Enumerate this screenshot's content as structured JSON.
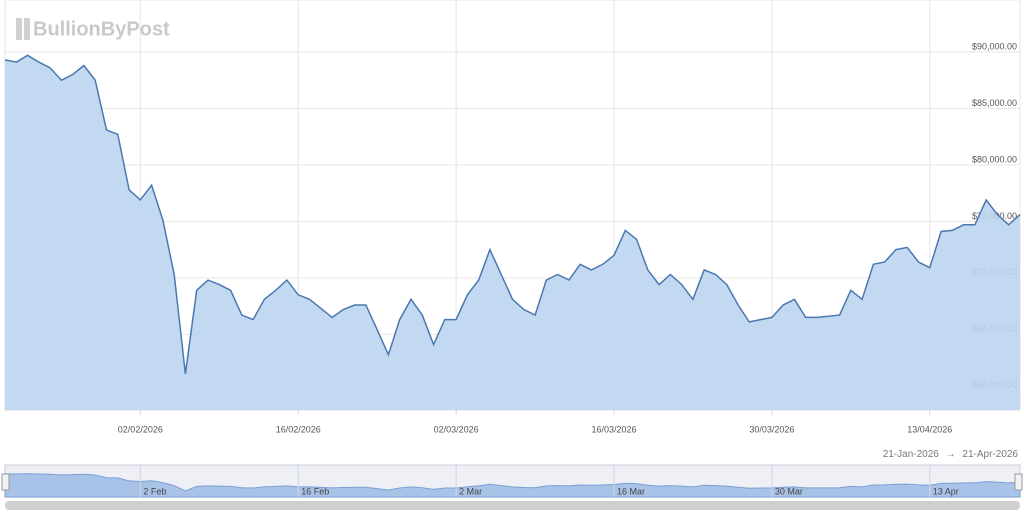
{
  "chart_data": {
    "type": "area",
    "watermark": "BullionByPost",
    "x": [
      "2026-01-21",
      "2026-01-22",
      "2026-01-23",
      "2026-01-24",
      "2026-01-25",
      "2026-01-26",
      "2026-01-27",
      "2026-01-28",
      "2026-01-29",
      "2026-01-30",
      "2026-01-31",
      "2026-02-01",
      "2026-02-02",
      "2026-02-03",
      "2026-02-04",
      "2026-02-05",
      "2026-02-06",
      "2026-02-07",
      "2026-02-08",
      "2026-02-09",
      "2026-02-10",
      "2026-02-11",
      "2026-02-12",
      "2026-02-13",
      "2026-02-14",
      "2026-02-15",
      "2026-02-16",
      "2026-02-17",
      "2026-02-18",
      "2026-02-19",
      "2026-02-20",
      "2026-02-21",
      "2026-02-22",
      "2026-02-23",
      "2026-02-24",
      "2026-02-25",
      "2026-02-26",
      "2026-02-27",
      "2026-02-28",
      "2026-03-01",
      "2026-03-02",
      "2026-03-03",
      "2026-03-04",
      "2026-03-05",
      "2026-03-06",
      "2026-03-07",
      "2026-03-08",
      "2026-03-09",
      "2026-03-10",
      "2026-03-11",
      "2026-03-12",
      "2026-03-13",
      "2026-03-14",
      "2026-03-15",
      "2026-03-16",
      "2026-03-17",
      "2026-03-18",
      "2026-03-19",
      "2026-03-20",
      "2026-03-21",
      "2026-03-22",
      "2026-03-23",
      "2026-03-24",
      "2026-03-25",
      "2026-03-26",
      "2026-03-27",
      "2026-03-28",
      "2026-03-29",
      "2026-03-30",
      "2026-03-31",
      "2026-04-01",
      "2026-04-02",
      "2026-04-03",
      "2026-04-04",
      "2026-04-05",
      "2026-04-06",
      "2026-04-07",
      "2026-04-08",
      "2026-04-09",
      "2026-04-10",
      "2026-04-11",
      "2026-04-12",
      "2026-04-13",
      "2026-04-14",
      "2026-04-15",
      "2026-04-16",
      "2026-04-17",
      "2026-04-18",
      "2026-04-19",
      "2026-04-20",
      "2026-04-21"
    ],
    "series": [
      {
        "color": "#4a78b0",
        "fill": "#bcd4ef",
        "values": [
          89300,
          89100,
          89700,
          89100,
          88600,
          87500,
          88000,
          88800,
          87500,
          83100,
          82700,
          77800,
          76900,
          78200,
          75100,
          70300,
          61500,
          68900,
          69800,
          69400,
          68900,
          66700,
          66300,
          68100,
          68900,
          69800,
          68500,
          68100,
          67300,
          66500,
          67200,
          67600,
          67600,
          65400,
          63200,
          66300,
          68100,
          66700,
          64100,
          66300,
          66300,
          68500,
          69800,
          72500,
          70300,
          68100,
          67200,
          66700,
          69800,
          70300,
          69800,
          71200,
          70700,
          71200,
          72000,
          74200,
          73400,
          70700,
          69400,
          70300,
          69400,
          68100,
          70700,
          70300,
          69400,
          67600,
          66100,
          66300,
          66500,
          67600,
          68100,
          66500,
          66500,
          66600,
          66700,
          68900,
          68100,
          71200,
          71400,
          72500,
          72700,
          71400,
          70900,
          74100,
          74200,
          74700,
          74700,
          76900,
          75600,
          74700,
          75600
        ]
      }
    ],
    "xlim": [
      "2026-01-21",
      "2026-04-21"
    ],
    "xticks": [
      {
        "value": "2026-02-02",
        "label": "02/02/2026"
      },
      {
        "value": "2026-02-16",
        "label": "16/02/2026"
      },
      {
        "value": "2026-03-02",
        "label": "02/03/2026"
      },
      {
        "value": "2026-03-16",
        "label": "16/03/2026"
      },
      {
        "value": "2026-03-30",
        "label": "30/03/2026"
      },
      {
        "value": "2026-04-13",
        "label": "13/04/2026"
      }
    ],
    "ylim": [
      58300,
      94600
    ],
    "yticks": [
      {
        "value": 60000,
        "label": "$60,000.00"
      },
      {
        "value": 65000,
        "label": "$65,000.00"
      },
      {
        "value": 70000,
        "label": "$70,000.00"
      },
      {
        "value": 75000,
        "label": "$75,000.00"
      },
      {
        "value": 80000,
        "label": "$80,000.00"
      },
      {
        "value": 85000,
        "label": "$85,000.00"
      },
      {
        "value": 90000,
        "label": "$90,000.00"
      }
    ],
    "grid": true,
    "navigator": {
      "xticks": [
        {
          "value": "2026-02-02",
          "label": "2 Feb"
        },
        {
          "value": "2026-02-16",
          "label": "16 Feb"
        },
        {
          "value": "2026-03-02",
          "label": "2 Mar"
        },
        {
          "value": "2026-03-16",
          "label": "16 Mar"
        },
        {
          "value": "2026-03-30",
          "label": "30 Mar"
        },
        {
          "value": "2026-04-13",
          "label": "13 Apr"
        }
      ],
      "range_from": "21-Jan-2026",
      "range_separator": "→",
      "range_to": "21-Apr-2026"
    }
  }
}
